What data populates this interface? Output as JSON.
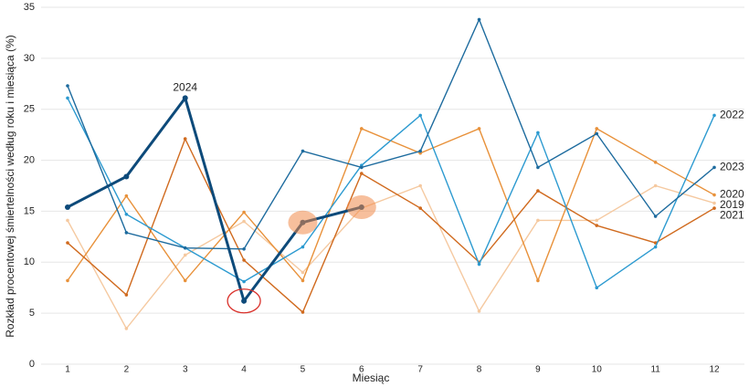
{
  "chart_data": {
    "type": "line",
    "xlabel": "Miesiąc",
    "ylabel": "Rozkład procentowej śmiertelności według roku i miesiąca (%)",
    "categories": [
      1,
      2,
      3,
      4,
      5,
      6,
      7,
      8,
      9,
      10,
      11,
      12
    ],
    "ylim": [
      0,
      35
    ],
    "yticks": [
      0,
      5,
      10,
      15,
      20,
      25,
      30,
      35
    ],
    "grid": true,
    "series": [
      {
        "name": "2019",
        "color": "#f5c9a0",
        "values": [
          14.1,
          3.5,
          10.7,
          14.0,
          9.0,
          15.3,
          17.5,
          5.2,
          14.1,
          14.1,
          17.5,
          15.8
        ]
      },
      {
        "name": "2020",
        "color": "#e8913a",
        "values": [
          8.2,
          16.5,
          8.2,
          14.9,
          8.2,
          23.1,
          20.7,
          23.1,
          8.2,
          23.1,
          19.8,
          16.6
        ]
      },
      {
        "name": "2021",
        "color": "#d06a1e",
        "values": [
          11.9,
          6.8,
          22.1,
          10.2,
          5.1,
          18.7,
          15.3,
          10.0,
          17.0,
          13.6,
          11.9,
          15.3
        ]
      },
      {
        "name": "2022",
        "color": "#2c9ad0",
        "values": [
          26.1,
          14.7,
          11.4,
          8.1,
          11.5,
          19.5,
          24.4,
          9.8,
          22.7,
          7.5,
          11.5,
          24.4
        ]
      },
      {
        "name": "2023",
        "color": "#1d6b9e",
        "values": [
          27.3,
          12.9,
          11.4,
          11.3,
          20.9,
          19.3,
          20.9,
          33.8,
          19.3,
          22.6,
          14.5,
          19.3
        ]
      },
      {
        "name": "2024",
        "color": "#0d4a7a",
        "values": [
          15.4,
          18.4,
          26.1,
          6.2,
          13.9,
          15.4,
          null,
          null,
          null,
          null,
          null,
          null
        ]
      }
    ]
  }
}
